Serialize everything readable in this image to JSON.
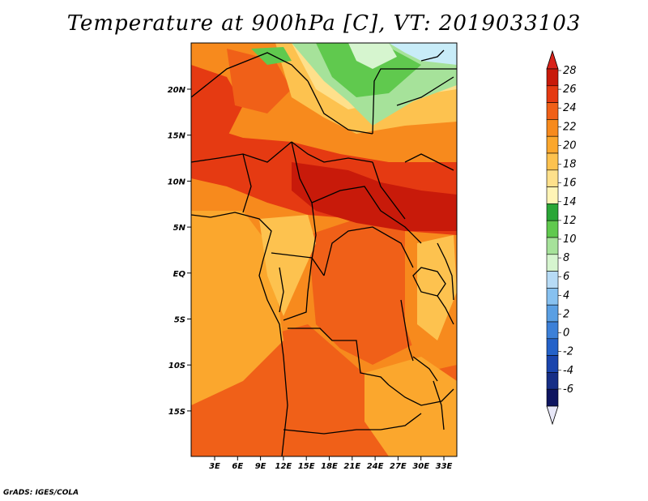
{
  "title": "Temperature at 900hPa [C], VT: 2019033103",
  "footer": "GrADS: IGES/COLA",
  "map": {
    "variable": "Temperature",
    "level": "900hPa",
    "units": "C",
    "valid_time": "2019033103",
    "lat_ticks": [
      "20N",
      "15N",
      "10N",
      "5N",
      "EQ",
      "5S",
      "10S",
      "15S"
    ],
    "lon_ticks": [
      "3E",
      "6E",
      "9E",
      "12E",
      "15E",
      "18E",
      "21E",
      "24E",
      "27E",
      "30E",
      "33E"
    ]
  },
  "colorbar": {
    "labels": [
      "28",
      "26",
      "24",
      "22",
      "20",
      "18",
      "16",
      "14",
      "12",
      "10",
      "8",
      "6",
      "4",
      "2",
      "0",
      "-2",
      "-4",
      "-6"
    ],
    "colors": [
      "#c81a0a",
      "#e53a12",
      "#f06018",
      "#f78a1d",
      "#fba72d",
      "#fdc24f",
      "#fee08b",
      "#fff4b6",
      "#2aa637",
      "#60c94e",
      "#a6e29a",
      "#d6f5cf",
      "#b7dbf6",
      "#87c1f0",
      "#5a9fe3",
      "#3c80d8",
      "#2462c9",
      "#1a45ad",
      "#162e86",
      "#0e1560"
    ],
    "max_color": "#d8221a",
    "min_color": "#e8e8f8"
  }
}
